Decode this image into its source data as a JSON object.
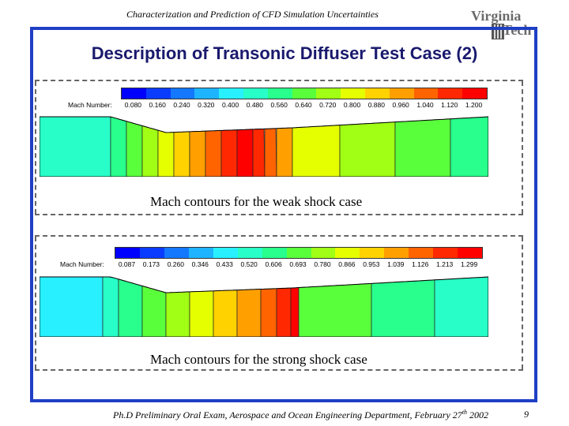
{
  "header": {
    "running_title": "Characterization and Prediction of CFD Simulation Uncertainties",
    "logo_line1": "Virginia",
    "logo_line2": "Tech"
  },
  "slide": {
    "title": "Description of Transonic Diffuser Test Case (2)"
  },
  "weak": {
    "legend_label": "Mach Number:",
    "ticks": [
      "0.080",
      "0.160",
      "0.240",
      "0.320",
      "0.400",
      "0.480",
      "0.560",
      "0.640",
      "0.720",
      "0.800",
      "0.880",
      "0.960",
      "1.040",
      "1.120",
      "1.200"
    ],
    "caption": "Mach contours for the weak shock case"
  },
  "strong": {
    "legend_label": "Mach Number:",
    "ticks": [
      "0.087",
      "0.173",
      "0.260",
      "0.346",
      "0.433",
      "0.520",
      "0.606",
      "0.693",
      "0.780",
      "0.866",
      "0.953",
      "1.039",
      "1.126",
      "1.213",
      "1.299"
    ],
    "caption": "Mach contours for the strong shock case"
  },
  "colors": {
    "frame": "#1f3fc4",
    "title": "#1a1a6e",
    "colormap": [
      "#0000ff",
      "#0a3cff",
      "#1478ff",
      "#1eb4ff",
      "#28f0ff",
      "#28ffc8",
      "#28ff8c",
      "#5aff3c",
      "#a0ff14",
      "#e6ff00",
      "#ffd200",
      "#ffa000",
      "#ff6400",
      "#ff2800",
      "#ff0000"
    ]
  },
  "footer": {
    "text_before": "Ph.D Preliminary Oral Exam, Aerospace and Ocean Engineering Department, February 27",
    "sup": "th",
    "text_after": " 2002",
    "page_number": "9"
  }
}
